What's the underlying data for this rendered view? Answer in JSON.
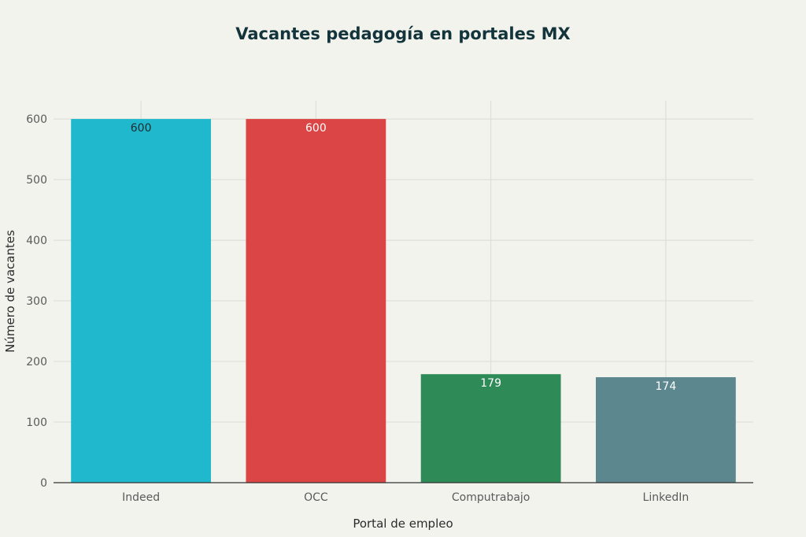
{
  "chart_data": {
    "type": "bar",
    "title": "Vacantes pedagogía en portales MX",
    "xlabel": "Portal de empleo",
    "ylabel": "Número de vacantes",
    "categories": [
      "Indeed",
      "OCC",
      "Computrabajo",
      "LinkedIn"
    ],
    "values": [
      600,
      600,
      179,
      174
    ],
    "data_labels": [
      "600",
      "600",
      "179",
      "174"
    ],
    "colors": [
      "#1fb8cd",
      "#db4545",
      "#2e8b57",
      "#5d878f"
    ],
    "label_colors": [
      "#1f2a2e",
      "#ffffff",
      "#ffffff",
      "#ffffff"
    ],
    "ylim": [
      0,
      630
    ],
    "yticks": [
      0,
      100,
      200,
      300,
      400,
      500,
      600
    ],
    "ytick_labels": [
      "0",
      "100",
      "200",
      "300",
      "400",
      "500",
      "600"
    ],
    "grid": true,
    "legend": "none"
  },
  "colors": {
    "background": "#f3f3ee",
    "grid": "#dcdcd6",
    "axis_line": "#333333",
    "title": "#13343b",
    "tick_text": "#5a5a5a",
    "axis_title": "#2b2b2b"
  }
}
